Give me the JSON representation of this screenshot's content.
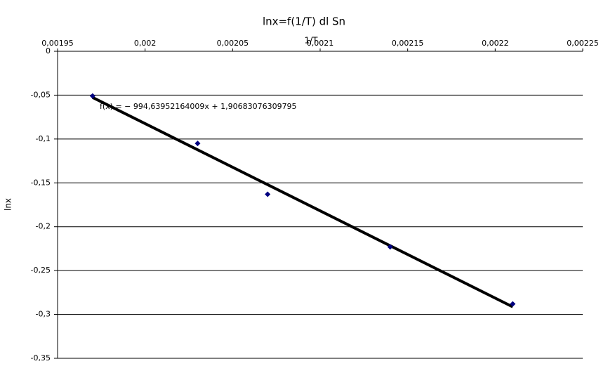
{
  "chart_data": {
    "type": "scatter",
    "title": "lnx=f(1/T) dl Sn",
    "x_label": "1/T",
    "y_label": "lnx",
    "series": [
      {
        "color": "#000080",
        "x": [
          0.00197,
          0.00203,
          0.00207,
          0.00214,
          0.00221
        ],
        "values": [
          -0.051,
          -0.105,
          -0.163,
          -0.223,
          -0.288
        ]
      }
    ],
    "trendline": {
      "slope": -994.63952164009,
      "intercept": 1.90683076309795,
      "label": "f(x) = − 994,63952164009x + 1,90683076309795",
      "color": "#000000"
    },
    "xlim": [
      0.00195,
      0.00225
    ],
    "xticks": [
      {
        "value": 0.00195,
        "label": "0,00195"
      },
      {
        "value": 0.002,
        "label": "0,002"
      },
      {
        "value": 0.00205,
        "label": "0,00205"
      },
      {
        "value": 0.0021,
        "label": "0,0021"
      },
      {
        "value": 0.00215,
        "label": "0,00215"
      },
      {
        "value": 0.0022,
        "label": "0,0022"
      },
      {
        "value": 0.00225,
        "label": "0,00225"
      }
    ],
    "ylim": [
      -0.35,
      0
    ],
    "yticks": [
      0,
      {
        "value": -0.05,
        "label": "-0,05"
      },
      {
        "value": -0.1,
        "label": "-0,1"
      },
      {
        "value": -0.15,
        "label": "-0,15"
      },
      {
        "value": -0.2,
        "label": "-0,2"
      },
      {
        "value": -0.25,
        "label": "-0,25"
      },
      {
        "value": -0.3,
        "label": "-0,3"
      },
      {
        "value": -0.35,
        "label": "-0,35"
      }
    ],
    "grid": true
  }
}
